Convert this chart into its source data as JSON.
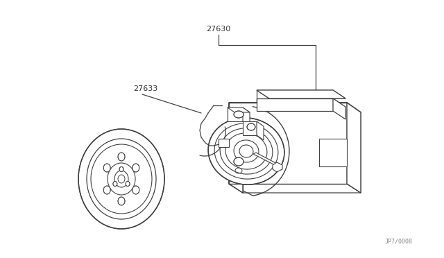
{
  "background_color": "#ffffff",
  "line_color": "#404040",
  "label_color": "#303030",
  "watermark": "JP7/0008",
  "figsize": [
    6.4,
    3.72
  ],
  "dpi": 100
}
